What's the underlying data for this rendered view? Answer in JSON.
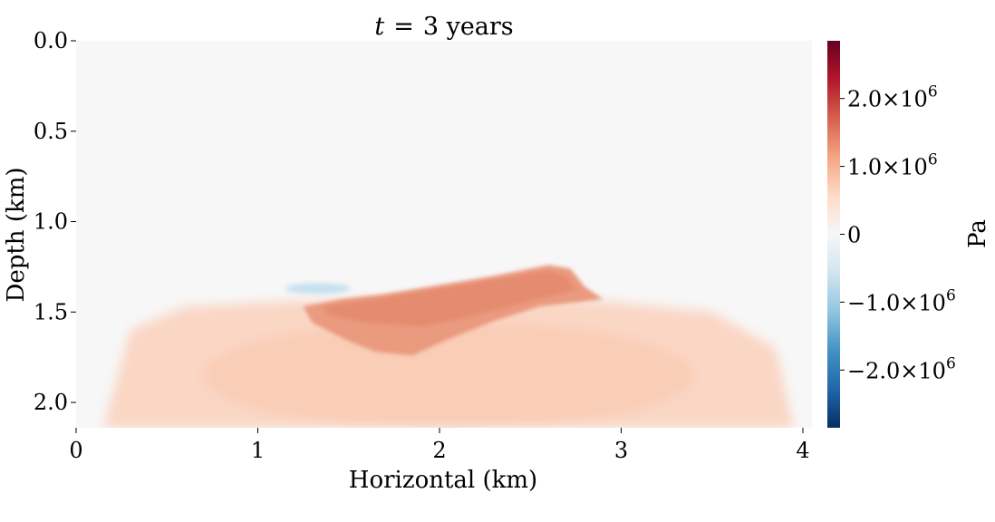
{
  "chart_data": {
    "type": "heatmap",
    "title_var": "t",
    "title_eq": "=",
    "title_value": "3 years",
    "xlabel": "Horizontal (km)",
    "ylabel": "Depth (km)",
    "xlim": [
      0,
      4.05
    ],
    "ylim": [
      2.14,
      0.0
    ],
    "x_ticks": [
      {
        "value": 0,
        "label": "0"
      },
      {
        "value": 1,
        "label": "1"
      },
      {
        "value": 2,
        "label": "2"
      },
      {
        "value": 3,
        "label": "3"
      },
      {
        "value": 4,
        "label": "4"
      }
    ],
    "y_ticks": [
      {
        "value": 0.0,
        "label": "0.0"
      },
      {
        "value": 0.5,
        "label": "0.5"
      },
      {
        "value": 1.0,
        "label": "1.0"
      },
      {
        "value": 1.5,
        "label": "1.5"
      },
      {
        "value": 2.0,
        "label": "2.0"
      }
    ],
    "colorbar": {
      "label": "Pa",
      "colormap": "RdBu_r",
      "range": [
        -2850000.0,
        2850000.0
      ],
      "ticks": [
        {
          "value": 2000000,
          "mantissa": "2.0",
          "base": "10",
          "exp": "6"
        },
        {
          "value": 1000000,
          "mantissa": "1.0",
          "base": "10",
          "exp": "6"
        },
        {
          "value": 0,
          "mantissa": "0",
          "base": "",
          "exp": ""
        },
        {
          "value": -1000000,
          "mantissa": "−1.0",
          "base": "10",
          "exp": "6"
        },
        {
          "value": -2000000,
          "mantissa": "−2.0",
          "base": "10",
          "exp": "6"
        }
      ]
    },
    "field_description": "Near-zero background above ~1.4 km depth; broad positive (~0.6e6 Pa) region below 1.45 km fading toward the lateral edges; strong positive anomaly (~1.3-1.4e6 Pa) between x≈1.25-2.85 km, depth ≈1.25-1.75 km; small negative (~-0.3e6 Pa) lens near x≈1.35 km, depth≈1.37 km.",
    "regions": [
      {
        "name": "background",
        "value": 0
      },
      {
        "name": "lower-plume",
        "value": 600000,
        "x_range": [
          0.2,
          3.85
        ],
        "depth_range": [
          1.45,
          2.14
        ]
      },
      {
        "name": "main-anomaly",
        "value": 1350000,
        "x_range": [
          1.25,
          2.9
        ],
        "depth_range": [
          1.25,
          1.75
        ]
      },
      {
        "name": "negative-lens",
        "value": -300000,
        "x_range": [
          1.18,
          1.52
        ],
        "depth_range": [
          1.34,
          1.4
        ]
      }
    ]
  }
}
